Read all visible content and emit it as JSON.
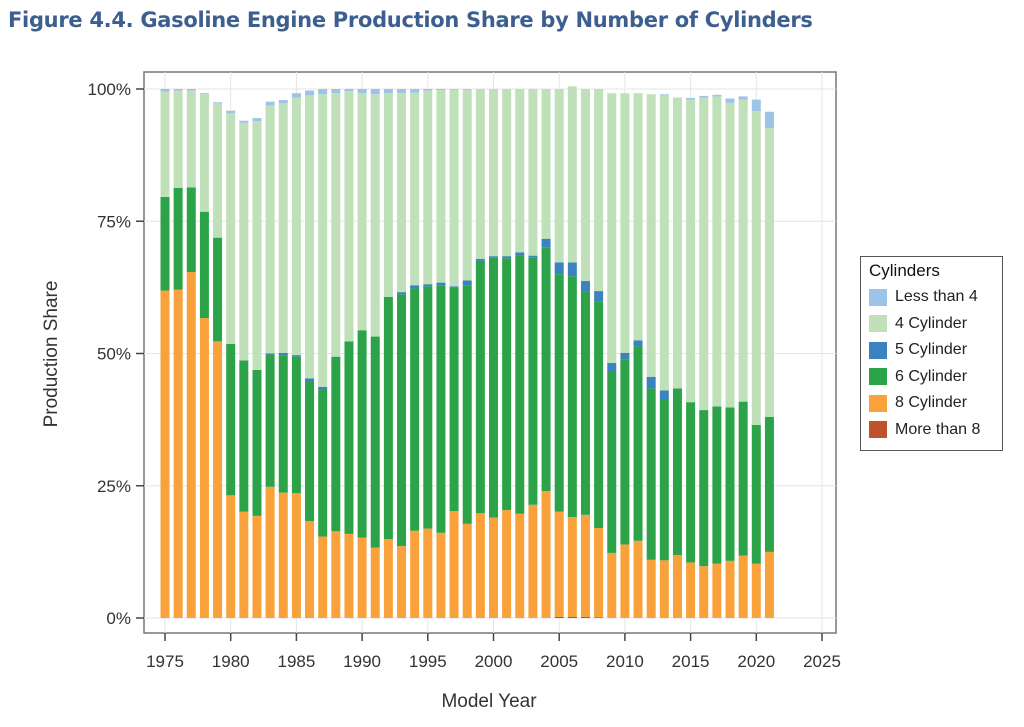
{
  "title": "Figure 4.4. Gasoline Engine Production Share by Number of Cylinders",
  "chart_data": {
    "type": "bar",
    "stacked": true,
    "title": "Figure 4.4. Gasoline Engine Production Share by Number of Cylinders",
    "xlabel": "Model Year",
    "ylabel": "Production Share",
    "x": [
      1975,
      1976,
      1977,
      1978,
      1979,
      1980,
      1981,
      1982,
      1983,
      1984,
      1985,
      1986,
      1987,
      1988,
      1989,
      1990,
      1991,
      1992,
      1993,
      1994,
      1995,
      1996,
      1997,
      1998,
      1999,
      2000,
      2001,
      2002,
      2003,
      2004,
      2005,
      2006,
      2007,
      2008,
      2009,
      2010,
      2011,
      2012,
      2013,
      2014,
      2015,
      2016,
      2017,
      2018,
      2019,
      2020,
      2021
    ],
    "xlim": [
      1974,
      2026
    ],
    "x_ticks": [
      1975,
      1980,
      1985,
      1990,
      1995,
      2000,
      2005,
      2010,
      2015,
      2020,
      2025
    ],
    "x_tick_labels": [
      "1975",
      "1980",
      "1985",
      "1990",
      "1995",
      "2000",
      "2005",
      "2010",
      "2015",
      "2020",
      "2025"
    ],
    "ylim": [
      0,
      100
    ],
    "y_ticks": [
      0,
      25,
      50,
      75,
      100
    ],
    "y_tick_labels": [
      "0%",
      "25%",
      "50%",
      "75%",
      "100%"
    ],
    "grid": true,
    "legend_title": "Cylinders",
    "legend_position": "right",
    "series": [
      {
        "name": "More than 8",
        "color": "#c0522a",
        "values": [
          0,
          0,
          0,
          0,
          0,
          0,
          0,
          0,
          0,
          0,
          0,
          0,
          0,
          0,
          0,
          0,
          0,
          0,
          0,
          0,
          0,
          0,
          0,
          0,
          0,
          0,
          0,
          0,
          0,
          0,
          0.2,
          0.2,
          0.2,
          0.1,
          0,
          0,
          0,
          0,
          0,
          0,
          0,
          0,
          0,
          0,
          0,
          0,
          0
        ]
      },
      {
        "name": "8 Cylinder",
        "color": "#f9a13a",
        "values": [
          61.9,
          62.1,
          65.4,
          56.7,
          52.3,
          23.2,
          20.1,
          19.3,
          24.8,
          23.7,
          23.6,
          18.3,
          15.4,
          16.4,
          15.9,
          15.2,
          13.3,
          14.9,
          13.6,
          16.5,
          16.9,
          16.1,
          20.2,
          17.8,
          19.8,
          19.0,
          20.4,
          19.7,
          21.4,
          24.0,
          19.9,
          18.9,
          19.3,
          16.9,
          12.3,
          13.9,
          14.6,
          11.0,
          10.9,
          11.9,
          10.5,
          9.8,
          10.3,
          10.8,
          11.8,
          10.3,
          12.5
        ]
      },
      {
        "name": "6 Cylinder",
        "color": "#2ca349",
        "values": [
          17.7,
          19.2,
          16.0,
          20.1,
          19.6,
          28.6,
          28.6,
          27.6,
          25.0,
          25.9,
          25.8,
          26.4,
          27.8,
          33.0,
          36.4,
          39.2,
          39.9,
          45.8,
          47.6,
          45.8,
          45.8,
          46.8,
          42.2,
          45.0,
          47.7,
          49.1,
          47.6,
          48.9,
          46.8,
          46.1,
          44.9,
          45.5,
          42.2,
          42.9,
          34.3,
          35.0,
          36.8,
          32.4,
          30.4,
          31.5,
          30.3,
          29.5,
          29.7,
          29.0,
          29.1,
          26.2,
          25.5
        ]
      },
      {
        "name": "5 Cylinder",
        "color": "#3a83c0",
        "values": [
          0,
          0,
          0,
          0,
          0,
          0,
          0,
          0,
          0.2,
          0.5,
          0.3,
          0.6,
          0.5,
          0,
          0,
          0,
          0,
          0,
          0.4,
          0.6,
          0.4,
          0.5,
          0.3,
          1.0,
          0.4,
          0.3,
          0.4,
          0.5,
          0.3,
          1.6,
          2.2,
          2.6,
          2.0,
          1.9,
          1.6,
          1.2,
          1.1,
          2.2,
          1.7,
          0,
          0,
          0,
          0,
          0,
          0,
          0,
          0
        ]
      },
      {
        "name": "4 Cylinder",
        "color": "#bfe0b8",
        "values": [
          19.9,
          18.4,
          18.3,
          22.2,
          25.4,
          43.6,
          44.9,
          47.0,
          46.9,
          47.2,
          48.7,
          53.5,
          55.3,
          49.8,
          47.3,
          44.8,
          45.8,
          38.5,
          37.6,
          36.4,
          36.6,
          36.4,
          37.2,
          36.1,
          32.1,
          31.6,
          31.6,
          30.9,
          31.5,
          28.3,
          32.8,
          33.3,
          36.3,
          38.2,
          51.0,
          49.1,
          46.7,
          53.4,
          55.8,
          55.0,
          57.2,
          59.1,
          58.6,
          57.6,
          57.1,
          59.3,
          54.6
        ]
      },
      {
        "name": "Less than 4",
        "color": "#9dc3e6",
        "values": [
          0.5,
          0.3,
          0.3,
          0.2,
          0.2,
          0.5,
          0.4,
          0.6,
          0.7,
          0.6,
          0.8,
          0.9,
          1.0,
          0.8,
          0.4,
          0.8,
          1.0,
          0.8,
          0.8,
          0.7,
          0.3,
          0.2,
          0.1,
          0.1,
          0.0,
          0.0,
          0.0,
          0.0,
          0.0,
          0.0,
          0.0,
          0.0,
          0.0,
          0.0,
          0.0,
          0.0,
          0.0,
          0.0,
          0.2,
          0.0,
          0.3,
          0.3,
          0.3,
          0.8,
          0.6,
          2.2,
          3.1
        ]
      }
    ]
  }
}
